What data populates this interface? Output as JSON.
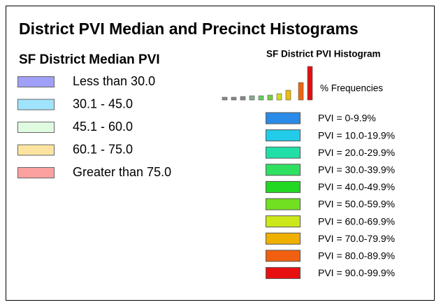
{
  "title": "District PVI Median and Precinct Histograms",
  "median_legend": {
    "title": "SF District Median PVI",
    "items": [
      {
        "label": "Less than 30.0",
        "color": "#a0a0f8"
      },
      {
        "label": "30.1 - 45.0",
        "color": "#a0e4fc"
      },
      {
        "label": "45.1 - 60.0",
        "color": "#e0fce0"
      },
      {
        "label": "60.1 - 75.0",
        "color": "#fce4a0"
      },
      {
        "label": "Greater than 75.0",
        "color": "#fca0a0"
      }
    ]
  },
  "histogram_legend": {
    "title": "SF District PVI Histogram",
    "axis_label": "% Frequencies",
    "items": [
      {
        "label": "PVI = 0-9.9%",
        "color": "#2a8ae8"
      },
      {
        "label": "PVI = 10.0-19.9%",
        "color": "#22cce8"
      },
      {
        "label": "PVI = 20.0-29.9%",
        "color": "#20e0a8"
      },
      {
        "label": "PVI = 30.0-39.9%",
        "color": "#30e060"
      },
      {
        "label": "PVI = 40.0-49.9%",
        "color": "#22d822"
      },
      {
        "label": "PVI = 50.0-59.9%",
        "color": "#70e020"
      },
      {
        "label": "PVI = 60.0-69.9%",
        "color": "#cce81a"
      },
      {
        "label": "PVI = 70.0-79.9%",
        "color": "#f0b000"
      },
      {
        "label": "PVI = 80.0-89.9%",
        "color": "#f06010"
      },
      {
        "label": "PVI = 90.0-99.9%",
        "color": "#e61010"
      }
    ]
  }
}
